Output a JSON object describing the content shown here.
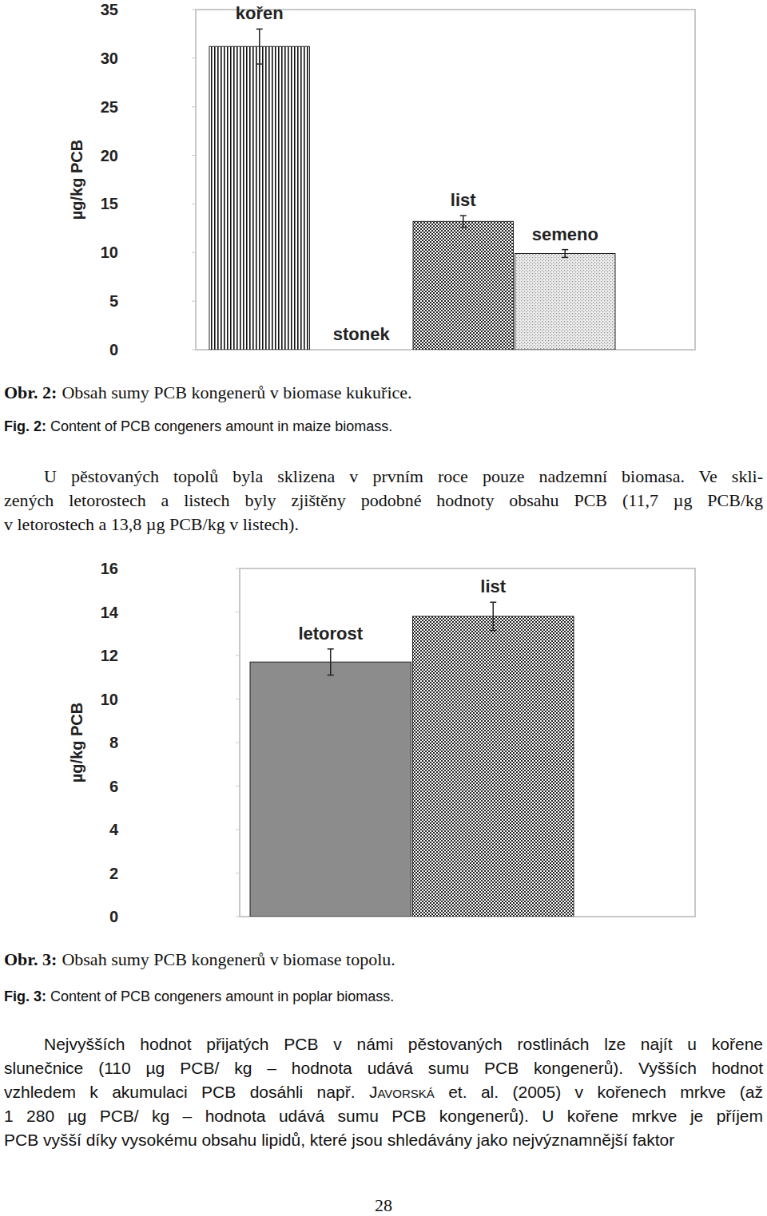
{
  "chart_data": [
    {
      "type": "bar",
      "categories": [
        "kořen",
        "stonek",
        "list",
        "semeno"
      ],
      "values": [
        31.2,
        0,
        13.2,
        9.9
      ],
      "errors": [
        1.8,
        null,
        0.6,
        0.4
      ],
      "colors": [
        "#111111",
        "#111111",
        "#222222",
        "#888888"
      ],
      "y_label": "µg/kg PCB",
      "ylim": [
        0,
        35
      ],
      "yticks": [
        0,
        5,
        10,
        15,
        20,
        25,
        30,
        35
      ],
      "grid": false,
      "tick_labels": "y"
    },
    {
      "type": "bar",
      "categories": [
        "letorost",
        "list"
      ],
      "values": [
        11.7,
        13.8
      ],
      "errors": [
        0.6,
        0.65
      ],
      "colors": [
        "#8c8c8c",
        "#222222"
      ],
      "y_label": "µg/kg PCB",
      "ylim": [
        0,
        16
      ],
      "yticks": [
        0,
        2,
        4,
        6,
        8,
        10,
        12,
        14,
        16
      ],
      "grid": false,
      "tick_labels": "y"
    }
  ],
  "document": {
    "captions": [
      {
        "cz_label": "Obr. 2:",
        "cz_text": "Obsah sumy PCB kongenerů v biomase kukuřice.",
        "en_label": "Fig. 2:",
        "en_text": "Content of PCB congeners amount in maize biomass."
      },
      {
        "cz_label": "Obr. 3:",
        "cz_text": "Obsah sumy PCB kongenerů v biomase topolu.",
        "en_label": "Fig. 3:",
        "en_text": "Content of PCB congeners amount in poplar biomass."
      }
    ],
    "paragraph_1": [
      "U pěstovaných topolů byla sklizena v prvním roce pouze nadzemní biomasa. Ve skli-",
      "zených letorostech a listech byly zjištěny podobné hodnoty obsahu PCB (11,7 µg PCB/kg",
      "v letorostech a 13,8 µg PCB/kg v listech)."
    ],
    "paragraph_2": [
      "Nejvyšších hodnot přijatých PCB v námi pěstovaných rostlinách lze najít u kořene",
      "slunečnice (110 µg PCB/ kg – hodnota udává sumu PCB kongenerů). Vyšších hodnot",
      {
        "before": "vzhledem k akumulaci PCB dosáhli např. ",
        "author": "Javorská",
        "after": " et. al. (2005) v kořenech mrkve (až"
      },
      "1 280 µg PCB/ kg – hodnota udává sumu PCB kongenerů). U kořene mrkve je příjem",
      "PCB vyšší díky vysokému obsahu lipidů, které jsou shledávány jako nejvýznamnější faktor"
    ],
    "page_number": "28"
  }
}
